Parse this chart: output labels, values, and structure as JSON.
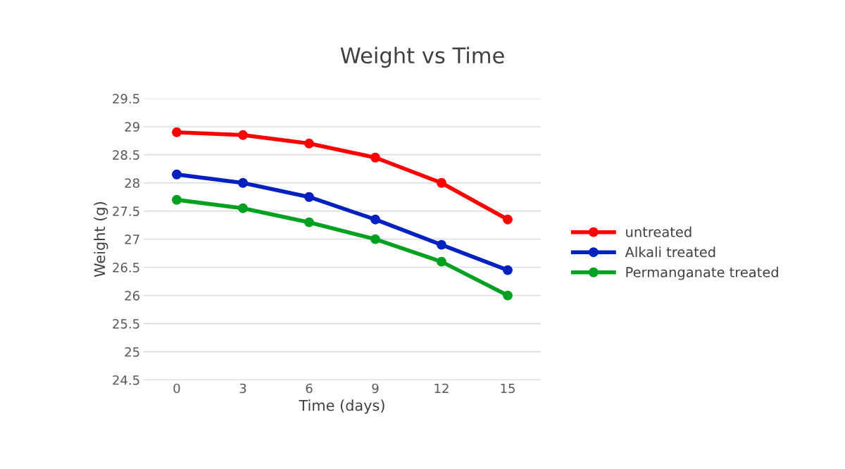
{
  "chart_data": {
    "type": "line",
    "title": "Weight vs Time",
    "xlabel": "Time (days)",
    "ylabel": "Weight (g)",
    "categories": [
      "0",
      "3",
      "6",
      "9",
      "12",
      "15"
    ],
    "series": [
      {
        "name": "untreated",
        "color": "#ff0000",
        "values": [
          28.9,
          28.85,
          28.7,
          28.45,
          28.0,
          27.35
        ]
      },
      {
        "name": "Alkali treated",
        "color": "#0020c0",
        "values": [
          28.15,
          28.0,
          27.75,
          27.35,
          26.9,
          26.45
        ]
      },
      {
        "name": "Permanganate treated",
        "color": "#00a020",
        "values": [
          27.7,
          27.55,
          27.3,
          27.0,
          26.6,
          26.0
        ]
      }
    ],
    "ylim": [
      24.5,
      29.5
    ],
    "yticks": [
      24.5,
      25,
      25.5,
      26,
      26.5,
      27,
      27.5,
      28,
      28.5,
      29,
      29.5
    ],
    "grid": "y",
    "legend": "right",
    "marker": "circle",
    "line_style": "solid"
  }
}
